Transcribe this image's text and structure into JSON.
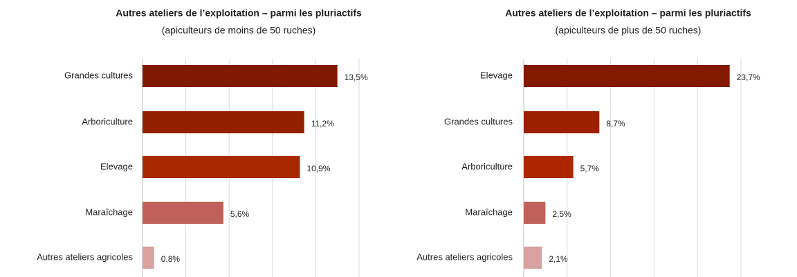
{
  "chart_data": [
    {
      "type": "bar",
      "title": "Autres ateliers de l’exploitation – parmi les pluriactifs",
      "subtitle": "(apiculteurs de moins de 50 ruches)",
      "categories": [
        "Grandes cultures",
        "Arboriculture",
        "Elevage",
        "Maraîchage",
        "Autres ateliers agricoles"
      ],
      "values": [
        13.5,
        11.2,
        10.9,
        5.6,
        0.8
      ],
      "value_labels": [
        "13,5%",
        "11,2%",
        "10,9%",
        "5,6%",
        "0,8%"
      ],
      "colors": [
        "#7f1a00",
        "#922000",
        "#a82800",
        "#c0605a",
        "#d9a0a0"
      ],
      "xlim": [
        0,
        15
      ],
      "xticks": [
        0,
        3,
        6,
        9,
        12,
        15
      ],
      "grid": true
    },
    {
      "type": "bar",
      "title": "Autres ateliers de l’exploitation – parmi les pluriactifs",
      "subtitle": "(apiculteurs de plus de 50 ruches)",
      "categories": [
        "Elevage",
        "Grandes cultures",
        "Arboriculture",
        "Maraîchage",
        "Autres ateliers agricoles"
      ],
      "values": [
        23.7,
        8.7,
        5.7,
        2.5,
        2.1
      ],
      "value_labels": [
        "23,7%",
        "8,7%",
        "5,7%",
        "2,5%",
        "2,1%"
      ],
      "colors": [
        "#831a00",
        "#9a2000",
        "#ad2600",
        "#c0605a",
        "#d9a0a0"
      ],
      "xlim": [
        0,
        25
      ],
      "xticks": [
        0,
        5,
        10,
        15,
        20,
        25
      ],
      "grid": true
    }
  ]
}
